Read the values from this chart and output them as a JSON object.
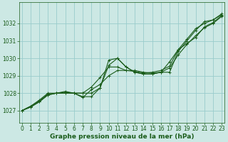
{
  "xlabel": "Graphe pression niveau de la mer (hPa)",
  "background_color": "#cce8e4",
  "grid_color": "#99cccc",
  "line_color": "#1a5c1a",
  "x_ticks": [
    0,
    1,
    2,
    3,
    4,
    5,
    6,
    7,
    8,
    9,
    10,
    11,
    12,
    13,
    14,
    15,
    16,
    17,
    18,
    19,
    20,
    21,
    22,
    23
  ],
  "y_ticks": [
    1027,
    1028,
    1029,
    1030,
    1031,
    1032
  ],
  "ylim": [
    1026.3,
    1033.2
  ],
  "xlim": [
    -0.3,
    23.3
  ],
  "series": [
    [
      1027.0,
      1027.25,
      1027.6,
      1028.0,
      1028.0,
      1028.1,
      1028.0,
      1028.0,
      1028.0,
      1028.3,
      1029.9,
      1030.0,
      1029.5,
      1029.2,
      1029.1,
      1029.1,
      1029.2,
      1029.2,
      1030.4,
      1031.0,
      1031.6,
      1032.1,
      1032.2,
      1032.55
    ],
    [
      1027.0,
      1027.25,
      1027.55,
      1027.95,
      1028.0,
      1028.05,
      1028.0,
      1028.0,
      1028.35,
      1028.9,
      1029.5,
      1029.5,
      1029.3,
      1029.25,
      1029.15,
      1029.2,
      1029.3,
      1029.55,
      1030.5,
      1030.85,
      1031.2,
      1031.8,
      1032.05,
      1032.45
    ],
    [
      1027.0,
      1027.2,
      1027.5,
      1027.9,
      1028.0,
      1028.0,
      1028.0,
      1027.8,
      1027.8,
      1028.3,
      1029.6,
      1030.0,
      1029.5,
      1029.2,
      1029.1,
      1029.1,
      1029.2,
      1029.8,
      1030.5,
      1031.1,
      1031.7,
      1032.0,
      1032.2,
      1032.5
    ],
    [
      1027.0,
      1027.2,
      1027.5,
      1027.9,
      1028.0,
      1028.0,
      1028.0,
      1027.75,
      1028.2,
      1028.5,
      1029.0,
      1029.3,
      1029.3,
      1029.3,
      1029.2,
      1029.15,
      1029.2,
      1029.45,
      1030.2,
      1030.8,
      1031.3,
      1031.75,
      1032.0,
      1032.4
    ]
  ],
  "marker": "+",
  "markersize": 3.5,
  "linewidth": 0.8,
  "fontsize_label": 6.5,
  "fontsize_tick": 5.5
}
